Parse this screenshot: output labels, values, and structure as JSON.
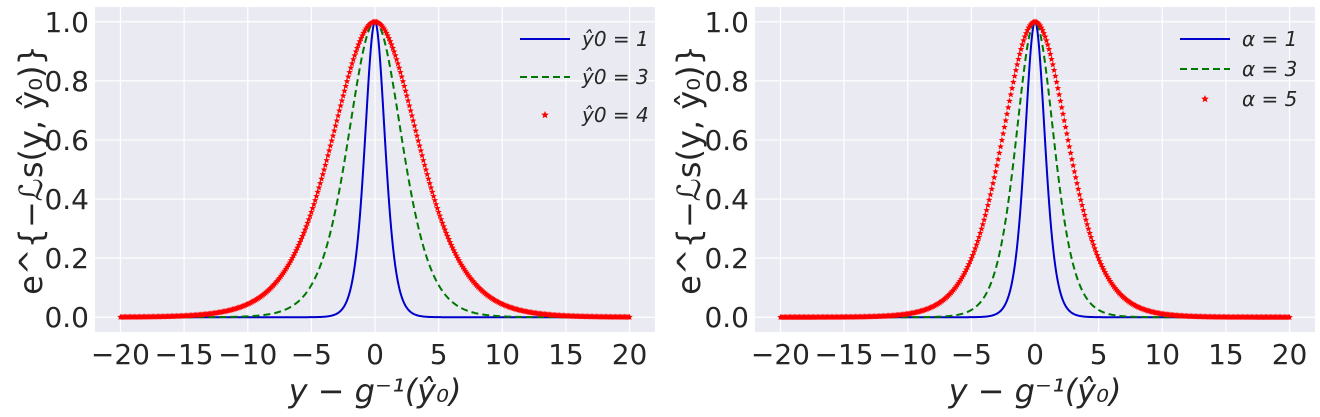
{
  "chart_data": [
    {
      "type": "line",
      "xlabel": "y − g⁻¹(ŷ₀)",
      "ylabel": "e^{−ℒs(y, ŷ₀)}",
      "xlim": [
        -22,
        22
      ],
      "ylim": [
        -0.05,
        1.05
      ],
      "xticks": [
        "−20",
        "−15",
        "−10",
        "−5",
        "0",
        "5",
        "10",
        "15",
        "20"
      ],
      "yticks": [
        "0.0",
        "0.2",
        "0.4",
        "0.6",
        "0.8",
        "1.0"
      ],
      "grid": true,
      "legend_position": "top-right",
      "x_range": [
        -20,
        20
      ],
      "series": [
        {
          "name": "ŷ0 = 1",
          "style": "solid",
          "color": "#0000cc",
          "width_param": 1.0
        },
        {
          "name": "ŷ0 = 3",
          "style": "dashed",
          "color": "#007700",
          "width_param": 2.7
        },
        {
          "name": "ŷ0 = 4",
          "style": "star-markers",
          "color": "#ff0000",
          "width_param": 4.3
        }
      ]
    },
    {
      "type": "line",
      "xlabel": "y − g⁻¹(ŷ₀)",
      "ylabel": "e^{−ℒs(y, ŷ₀)}",
      "xlim": [
        -22,
        22
      ],
      "ylim": [
        -0.05,
        1.05
      ],
      "xticks": [
        "−20",
        "−15",
        "−10",
        "−5",
        "0",
        "5",
        "10",
        "15",
        "20"
      ],
      "yticks": [
        "0.0",
        "0.2",
        "0.4",
        "0.6",
        "0.8",
        "1.0"
      ],
      "grid": true,
      "legend_position": "top-right",
      "x_range": [
        -20,
        20
      ],
      "series": [
        {
          "name": "α = 1",
          "style": "solid",
          "color": "#0000cc",
          "width_param": 1.0
        },
        {
          "name": "α = 3",
          "style": "dashed",
          "color": "#007700",
          "width_param": 1.9
        },
        {
          "name": "α = 5",
          "style": "star-markers",
          "color": "#ff0000",
          "width_param": 3.3
        }
      ]
    }
  ]
}
